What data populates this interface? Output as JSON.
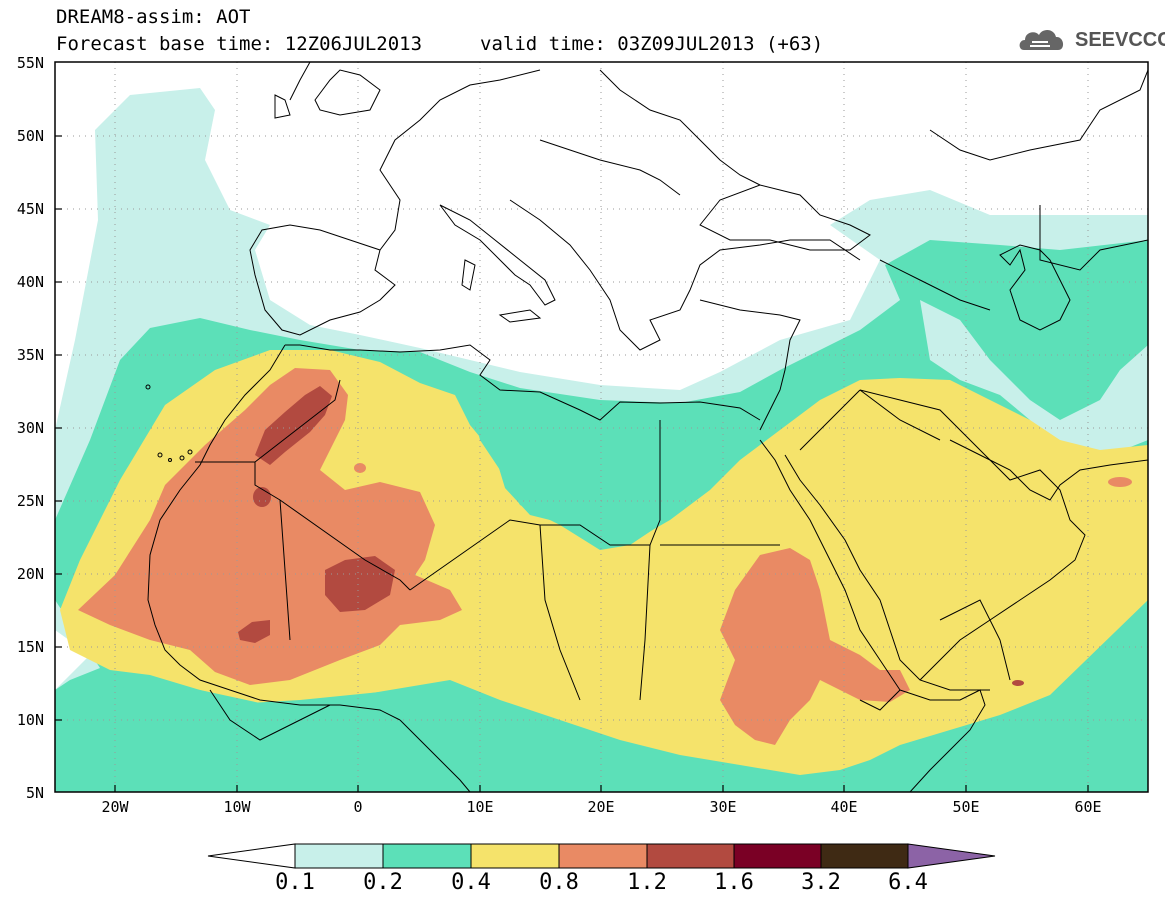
{
  "header": {
    "title": "DREAM8-assim: AOT",
    "base_time": "Forecast base time: 12Z06JUL2013",
    "valid_time": "valid time: 03Z09JUL2013 (+63)"
  },
  "logo": {
    "text": "SEEVCCC",
    "icon": "cloud-icon"
  },
  "map": {
    "lat_labels": [
      "55N",
      "50N",
      "45N",
      "40N",
      "35N",
      "30N",
      "25N",
      "20N",
      "15N",
      "10N",
      "5N"
    ],
    "lon_labels": [
      "20W",
      "10W",
      "0",
      "10E",
      "20E",
      "30E",
      "40E",
      "50E",
      "60E"
    ],
    "grid": true
  },
  "colors": {
    "c01": "#c8f0ea",
    "c02": "#5ce0b8",
    "c04": "#f5e36b",
    "c08": "#e98a64",
    "c12": "#b24a40",
    "c16": "#7a0025",
    "c32": "#3f2a14",
    "c64": "#8c63a6"
  },
  "legend": {
    "labels": [
      "0.1",
      "0.2",
      "0.4",
      "0.8",
      "1.2",
      "1.6",
      "3.2",
      "6.4"
    ]
  }
}
